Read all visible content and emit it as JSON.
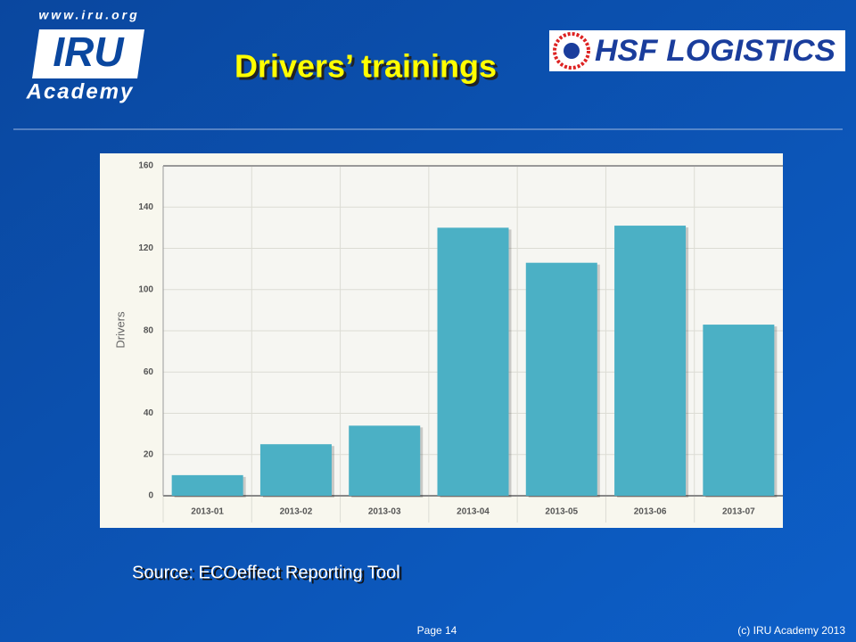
{
  "header": {
    "website": "www.iru.org",
    "logo_text": "IRU",
    "logo_subtext": "Academy",
    "partner_logo": "HSF LOGISTICS"
  },
  "slide": {
    "title": "Drivers’ trainings",
    "source": "Source: ECOeffect Reporting Tool"
  },
  "footer": {
    "page": "Page 14",
    "copyright": "(c) IRU Academy 2013"
  },
  "chart_data": {
    "type": "bar",
    "y_label": "Drivers",
    "categories": [
      "2013-01",
      "2013-02",
      "2013-03",
      "2013-04",
      "2013-05",
      "2013-06",
      "2013-07"
    ],
    "values": [
      10,
      25,
      34,
      130,
      113,
      131,
      83
    ],
    "color": "#4bb0c5",
    "ylim": [
      0,
      160
    ],
    "yticks": [
      0,
      20,
      40,
      60,
      80,
      100,
      120,
      140,
      160
    ],
    "grid": true
  }
}
